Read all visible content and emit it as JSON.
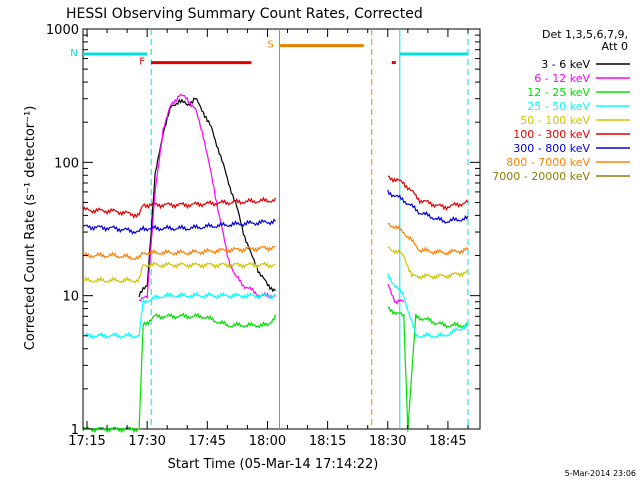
{
  "chart_data": {
    "type": "line",
    "title": "HESSI Observing Summary Count Rates, Corrected",
    "xlabel": "Start Time (05-Mar-14 17:14:22)",
    "ylabel": "Corrected Count Rate (s⁻¹ detector⁻¹)",
    "y_scale": "log",
    "ylim": [
      1,
      1000
    ],
    "xlim": [
      "17:14",
      "18:53"
    ],
    "x_ticks": [
      "17:15",
      "17:30",
      "17:45",
      "18:00",
      "18:15",
      "18:30",
      "18:45"
    ],
    "y_ticks": [
      "1",
      "10",
      "100",
      "1000"
    ],
    "legend_header": [
      "Det 1,3,5,6,7,9,",
      "Att 0"
    ],
    "legend_placement": "right",
    "footer": "5-Mar-2014 23:06",
    "flags": [
      {
        "label": "N",
        "color": "#00e0e0",
        "segments": [
          [
            "17:14",
            "17:30"
          ],
          [
            "18:33",
            "18:50"
          ]
        ],
        "level": 650
      },
      {
        "label": "F",
        "color": "#e00000",
        "segments": [
          [
            "17:31",
            "17:56"
          ],
          [
            "18:31",
            "18:32"
          ]
        ],
        "level": 560
      },
      {
        "label": "S",
        "color": "#e88000",
        "segments": [
          [
            "18:03",
            "18:24"
          ]
        ],
        "level": 750
      }
    ],
    "vlines": [
      {
        "time": "17:31",
        "color": "#00e0e0",
        "style": "dashed"
      },
      {
        "time": "18:03",
        "color": "#e88000",
        "style": "solid"
      },
      {
        "time": "18:26",
        "color": "#e88000",
        "style": "dashed"
      },
      {
        "time": "18:33",
        "color": "#00e0e0",
        "style": "solid"
      },
      {
        "time": "18:50",
        "color": "#00e0e0",
        "style": "dashed"
      }
    ],
    "series": [
      {
        "name": "3 - 6 keV",
        "color": "#000000",
        "points": [
          [
            "17:28",
            10
          ],
          [
            "17:30",
            12
          ],
          [
            "17:32",
            80
          ],
          [
            "17:34",
            170
          ],
          [
            "17:36",
            260
          ],
          [
            "17:38",
            290
          ],
          [
            "17:40",
            270
          ],
          [
            "17:42",
            300
          ],
          [
            "17:44",
            240
          ],
          [
            "17:46",
            180
          ],
          [
            "17:48",
            120
          ],
          [
            "17:50",
            75
          ],
          [
            "17:52",
            50
          ],
          [
            "17:54",
            30
          ],
          [
            "17:56",
            20
          ],
          [
            "17:58",
            15
          ],
          [
            "18:00",
            12
          ],
          [
            "18:02",
            11
          ]
        ]
      },
      {
        "name": "6 - 12 keV",
        "color": "#ff00ff",
        "points": [
          [
            "17:28",
            9
          ],
          [
            "17:30",
            10
          ],
          [
            "17:32",
            60
          ],
          [
            "17:34",
            180
          ],
          [
            "17:36",
            270
          ],
          [
            "17:38",
            320
          ],
          [
            "17:40",
            300
          ],
          [
            "17:42",
            250
          ],
          [
            "17:44",
            160
          ],
          [
            "17:46",
            80
          ],
          [
            "17:48",
            40
          ],
          [
            "17:50",
            20
          ],
          [
            "17:52",
            14
          ],
          [
            "17:54",
            12
          ],
          [
            "17:56",
            11
          ],
          [
            "17:58",
            10
          ],
          [
            "18:00",
            10
          ],
          [
            "18:02",
            10
          ],
          [
            "18:30",
            12
          ],
          [
            "18:32",
            9
          ],
          [
            "18:34",
            9
          ]
        ]
      },
      {
        "name": "12 - 25 keV",
        "color": "#00e000",
        "points": [
          [
            "17:14",
            1
          ],
          [
            "17:20",
            1
          ],
          [
            "17:28",
            1
          ],
          [
            "17:29",
            6
          ],
          [
            "17:32",
            7
          ],
          [
            "17:38",
            7
          ],
          [
            "17:44",
            7
          ],
          [
            "17:50",
            6
          ],
          [
            "17:56",
            6
          ],
          [
            "18:00",
            6
          ],
          [
            "18:02",
            7
          ],
          [
            "18:30",
            8
          ],
          [
            "18:34",
            7
          ],
          [
            "18:35",
            1
          ],
          [
            "18:37",
            7
          ],
          [
            "18:44",
            6
          ],
          [
            "18:50",
            6
          ]
        ]
      },
      {
        "name": "25 - 50 keV",
        "color": "#00ffff",
        "points": [
          [
            "17:14",
            5
          ],
          [
            "17:22",
            5
          ],
          [
            "17:28",
            5
          ],
          [
            "17:29",
            9
          ],
          [
            "17:34",
            10
          ],
          [
            "17:44",
            10
          ],
          [
            "17:54",
            10
          ],
          [
            "18:02",
            10
          ],
          [
            "18:30",
            14
          ],
          [
            "18:34",
            10
          ],
          [
            "18:37",
            5
          ],
          [
            "18:44",
            5
          ],
          [
            "18:50",
            6
          ]
        ]
      },
      {
        "name": "50 - 100 keV",
        "color": "#d4c400",
        "points": [
          [
            "17:14",
            13
          ],
          [
            "17:22",
            13
          ],
          [
            "17:28",
            13
          ],
          [
            "17:29",
            17
          ],
          [
            "17:40",
            17
          ],
          [
            "17:50",
            17
          ],
          [
            "18:02",
            17
          ],
          [
            "18:30",
            23
          ],
          [
            "18:34",
            20
          ],
          [
            "18:36",
            14
          ],
          [
            "18:44",
            14
          ],
          [
            "18:50",
            15
          ]
        ]
      },
      {
        "name": "100 - 300 keV",
        "color": "#e00000",
        "points": [
          [
            "17:14",
            44
          ],
          [
            "17:22",
            43
          ],
          [
            "17:28",
            40
          ],
          [
            "17:29",
            48
          ],
          [
            "17:40",
            48
          ],
          [
            "17:50",
            50
          ],
          [
            "18:02",
            52
          ],
          [
            "18:30",
            78
          ],
          [
            "18:34",
            70
          ],
          [
            "18:38",
            52
          ],
          [
            "18:44",
            46
          ],
          [
            "18:50",
            50
          ]
        ]
      },
      {
        "name": "300 - 800 keV",
        "color": "#0000e0",
        "points": [
          [
            "17:14",
            33
          ],
          [
            "17:22",
            32
          ],
          [
            "17:28",
            30
          ],
          [
            "17:29",
            32
          ],
          [
            "17:40",
            32
          ],
          [
            "17:50",
            34
          ],
          [
            "18:02",
            36
          ],
          [
            "18:30",
            60
          ],
          [
            "18:34",
            52
          ],
          [
            "18:38",
            42
          ],
          [
            "18:44",
            36
          ],
          [
            "18:50",
            38
          ]
        ]
      },
      {
        "name": "800 - 7000 keV",
        "color": "#ff8000",
        "points": [
          [
            "17:14",
            20
          ],
          [
            "17:22",
            20
          ],
          [
            "17:28",
            19
          ],
          [
            "17:29",
            21
          ],
          [
            "17:40",
            21
          ],
          [
            "17:50",
            22
          ],
          [
            "18:02",
            23
          ],
          [
            "18:30",
            35
          ],
          [
            "18:34",
            30
          ],
          [
            "18:38",
            22
          ],
          [
            "18:44",
            21
          ],
          [
            "18:50",
            22
          ]
        ]
      },
      {
        "name": "7000 - 20000 keV",
        "color": "#8b7d00",
        "points": []
      }
    ]
  }
}
